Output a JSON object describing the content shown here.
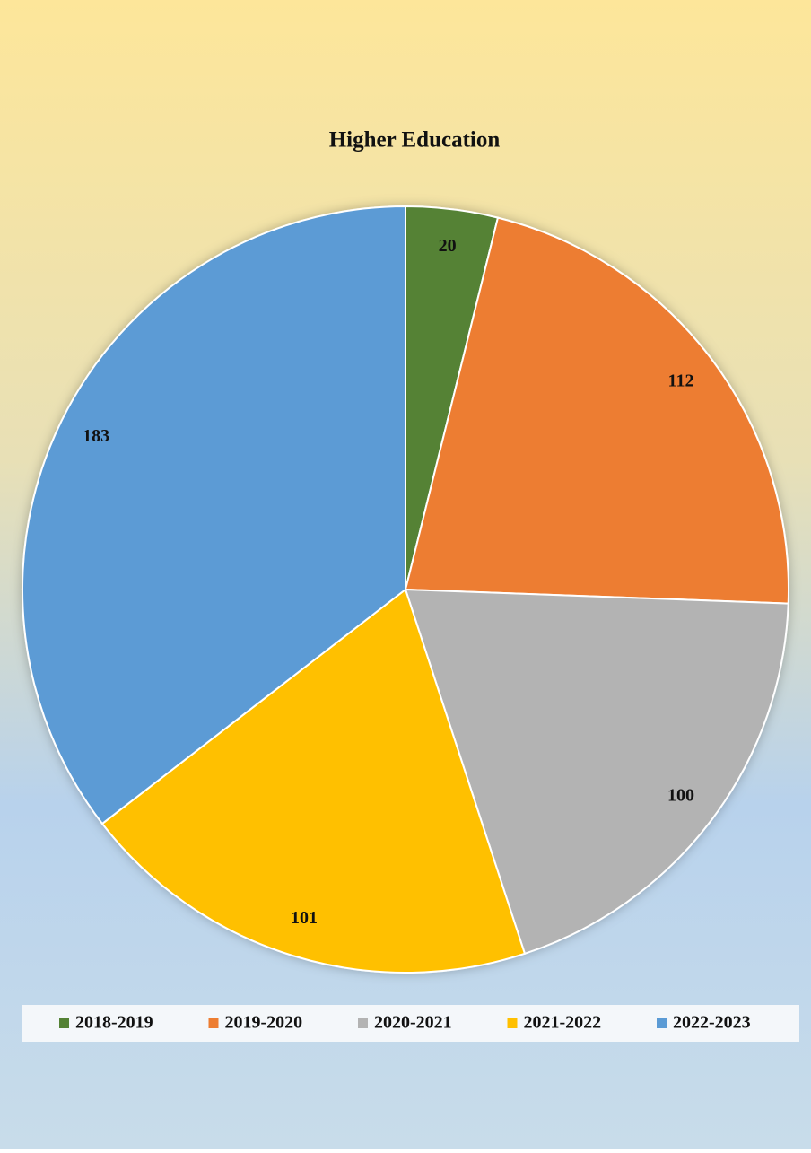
{
  "chart_data": {
    "type": "pie",
    "title": "Higher Education",
    "categories": [
      "2018-2019",
      "2019-2020",
      "2020-2021",
      "2021-2022",
      "2022-2023"
    ],
    "values": [
      20,
      112,
      100,
      101,
      183
    ],
    "colors": [
      "#548235",
      "#ed7d31",
      "#b3b3b3",
      "#ffc000",
      "#5b9bd5"
    ],
    "legend": "bottom"
  }
}
